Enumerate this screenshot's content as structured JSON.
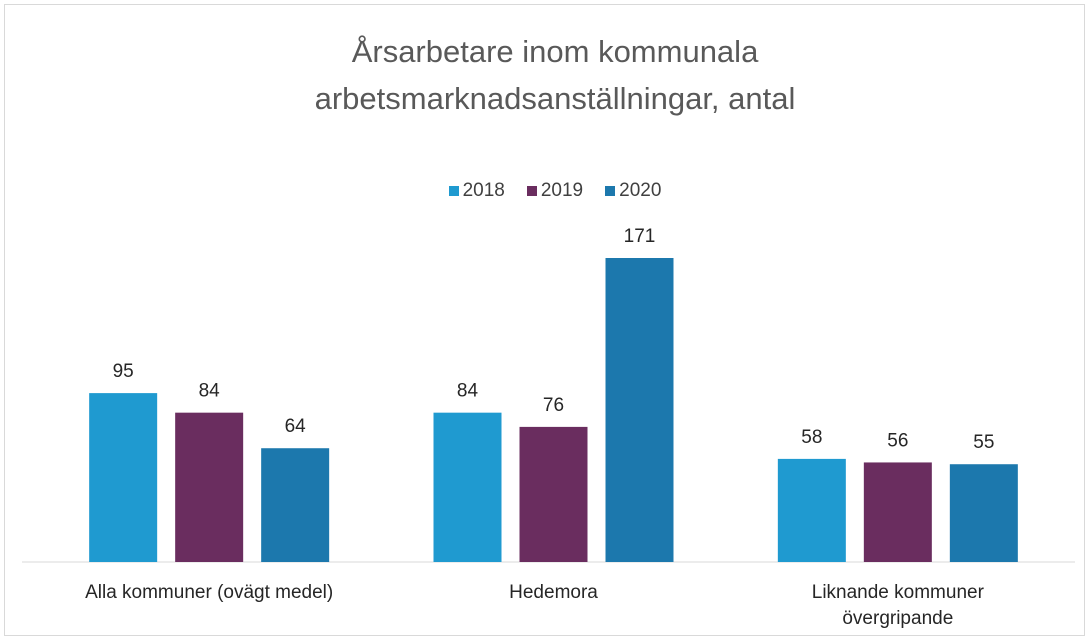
{
  "chart_data": {
    "type": "bar",
    "title": "Årsarbetare inom kommunala arbetsmarknadsanställningar, antal",
    "categories": [
      "Alla kommuner (ovägt medel)",
      "Hedemora",
      "Liknande kommuner övergripande"
    ],
    "series": [
      {
        "name": "2018",
        "color": "#1f9ad0",
        "values": [
          95,
          84,
          58
        ]
      },
      {
        "name": "2019",
        "color": "#6a2d5f",
        "values": [
          84,
          76,
          56
        ]
      },
      {
        "name": "2020",
        "color": "#1c78ad",
        "values": [
          64,
          171,
          55
        ]
      }
    ],
    "legend": "top",
    "data_labels": true
  }
}
